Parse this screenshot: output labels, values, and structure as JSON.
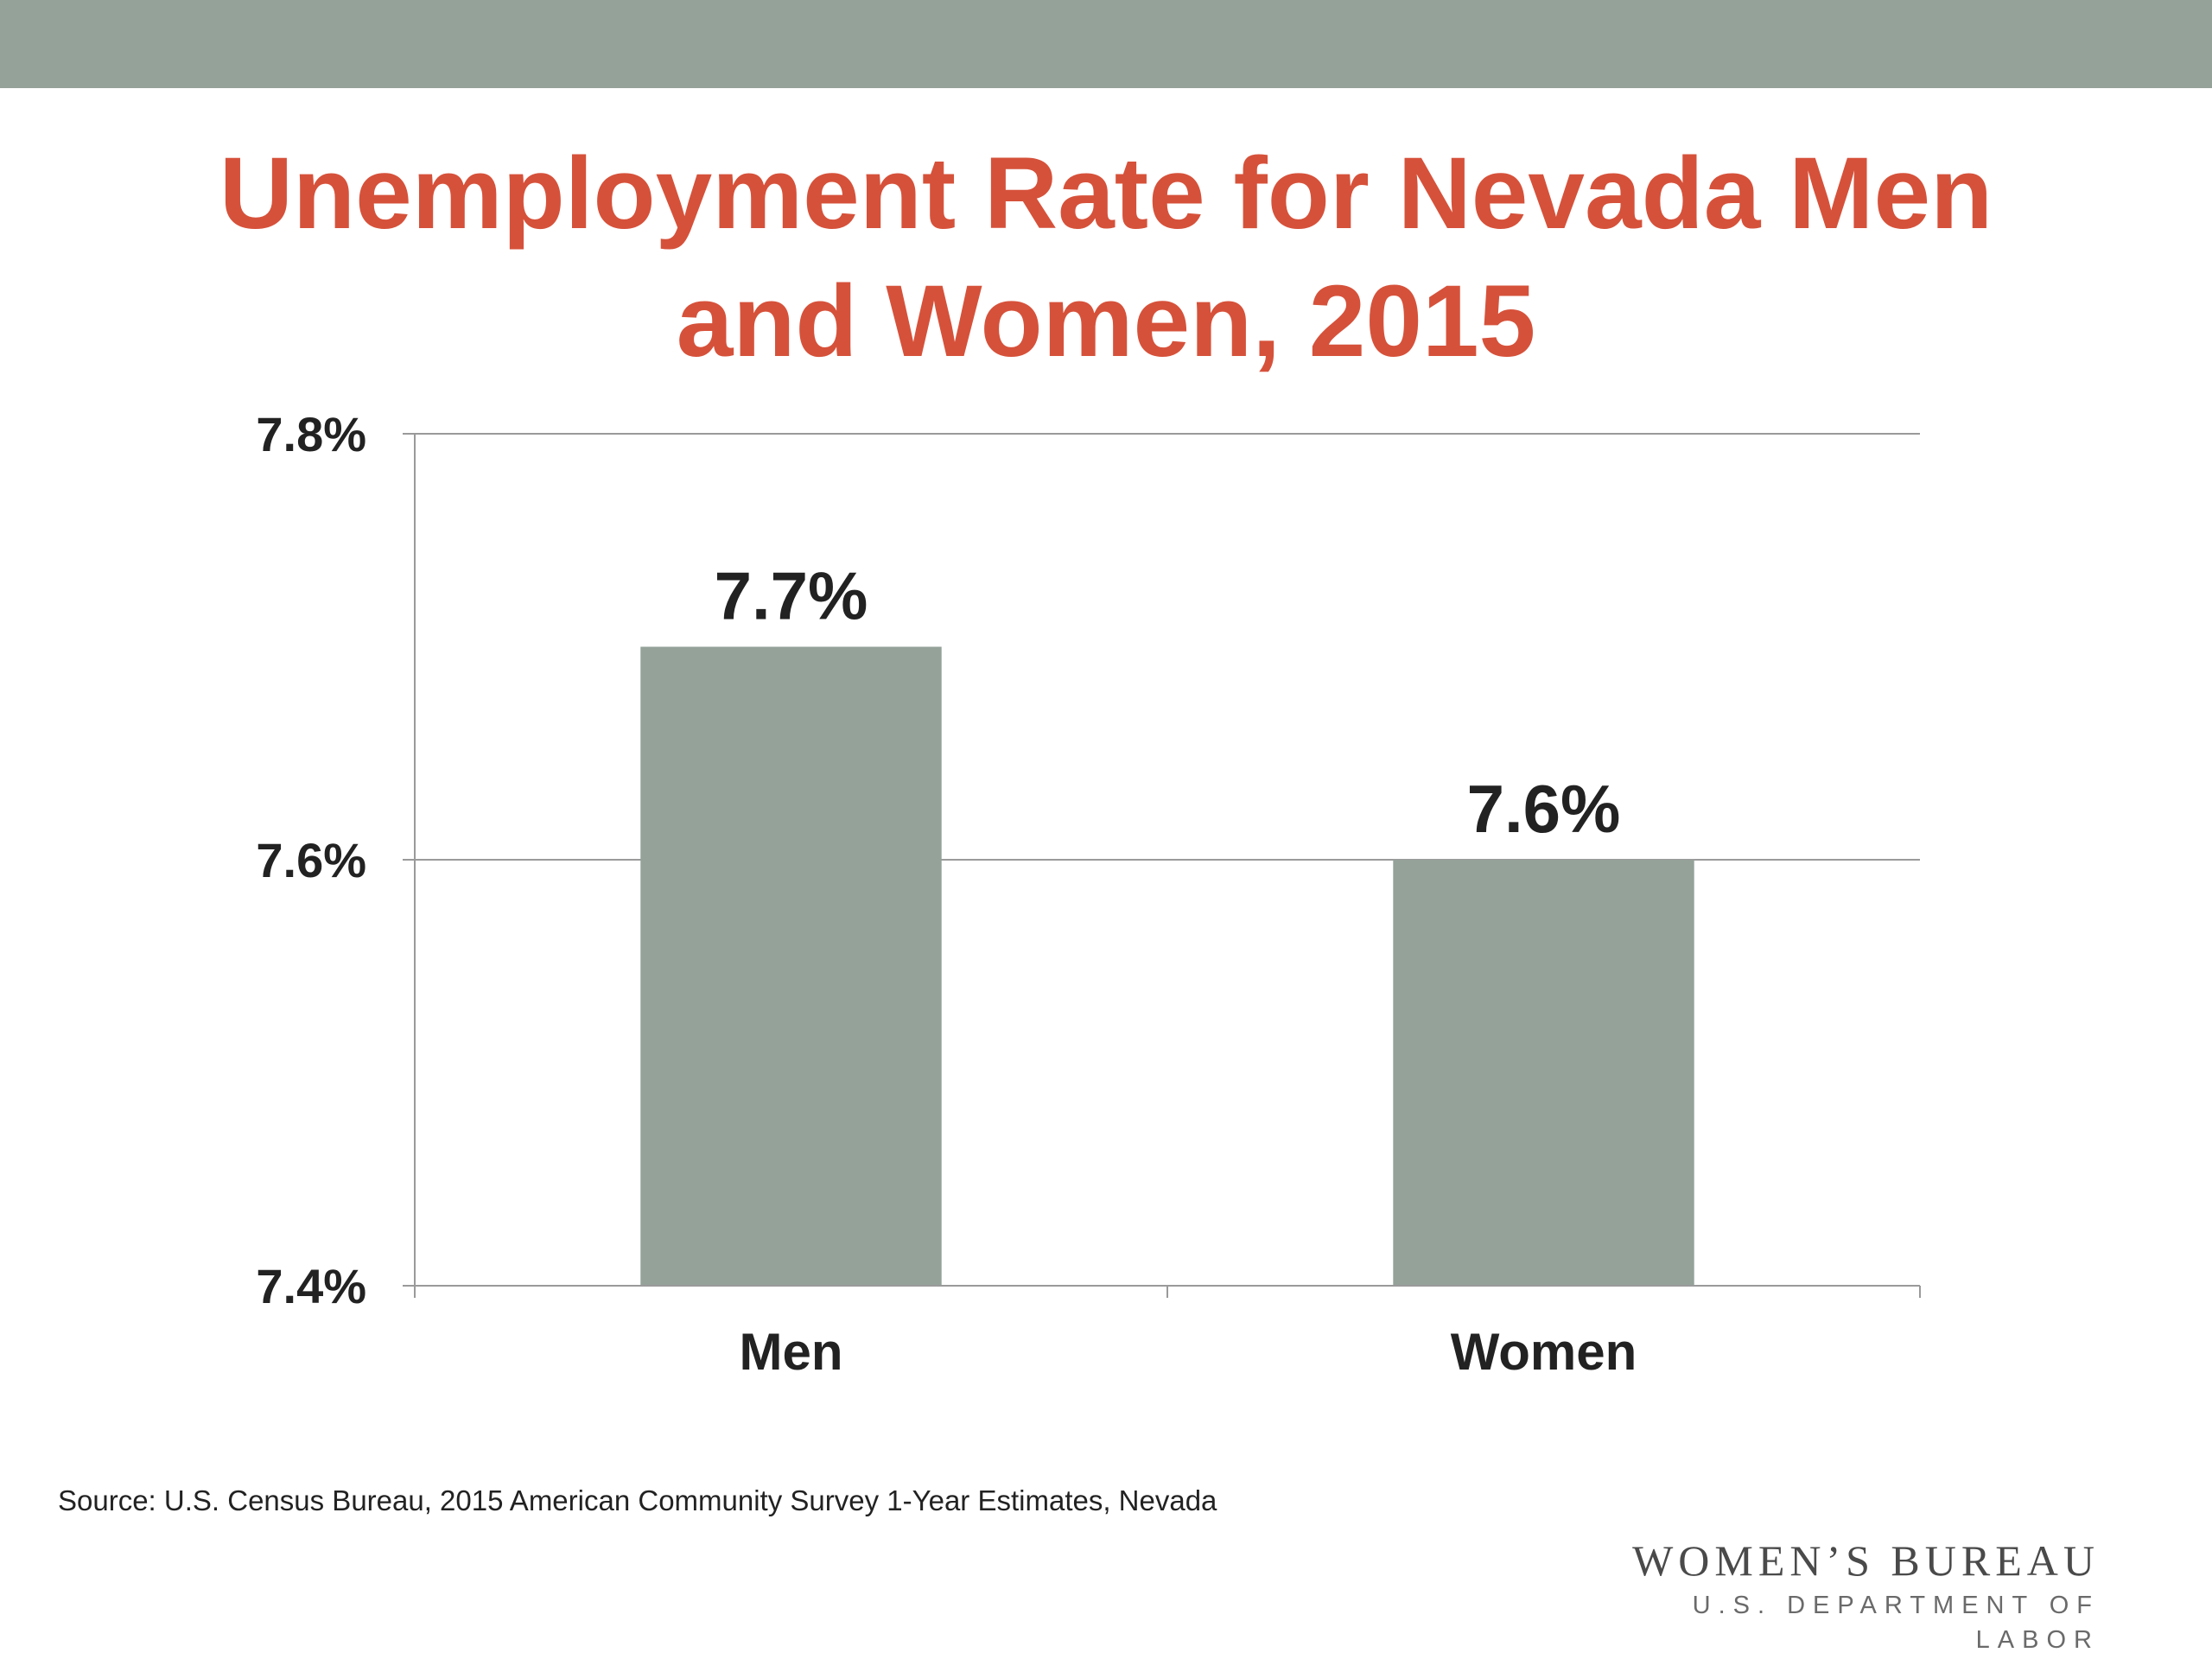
{
  "slide": {
    "title_line1": "Unemployment Rate for Nevada Men",
    "title_line2": "and Women, 2015",
    "source": "Source: U.S. Census Bureau, 2015 American Community Survey 1-Year Estimates, Nevada",
    "logo_main": "WOMEN’S BUREAU",
    "logo_sub": "U.S. DEPARTMENT OF LABOR"
  },
  "colors": {
    "band": "#94a29a",
    "title": "#d6513a",
    "bar": "#94a29a",
    "text": "#222222",
    "axis": "#9a9a9a"
  },
  "chart_data": {
    "type": "bar",
    "title": "Unemployment Rate for Nevada Men and Women, 2015",
    "categories": [
      "Men",
      "Women"
    ],
    "values": [
      7.7,
      7.6
    ],
    "data_labels": [
      "7.7%",
      "7.6%"
    ],
    "y_ticks": [
      7.4,
      7.6,
      7.8
    ],
    "y_tick_labels": [
      "7.4%",
      "7.6%",
      "7.8%"
    ],
    "ylim": [
      7.4,
      7.8
    ],
    "grid": true,
    "legend": "none",
    "xlabel": "",
    "ylabel": ""
  }
}
